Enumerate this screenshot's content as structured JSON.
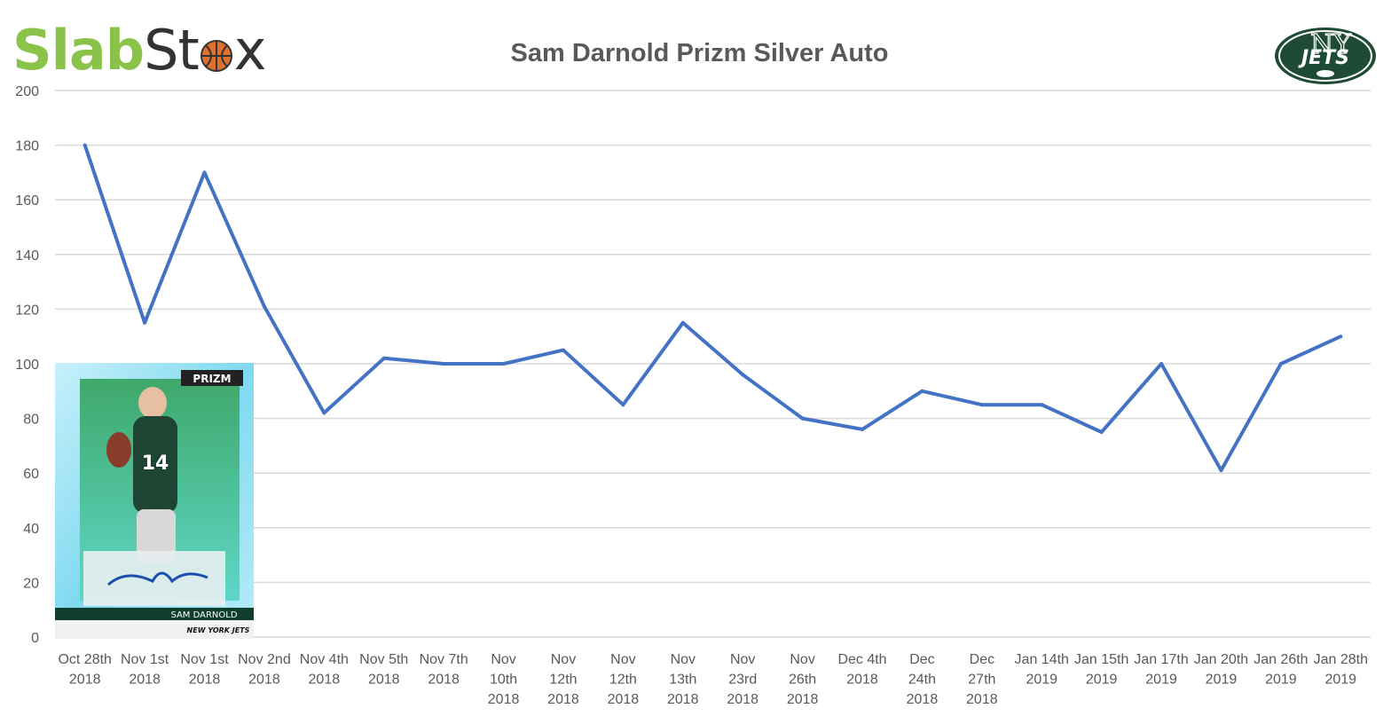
{
  "brand": {
    "logo_part1": "Slab",
    "logo_part2": "St",
    "logo_part3": "x",
    "color_green": "#8bc34a",
    "color_dark": "#333333"
  },
  "team_logo": {
    "text": "JETS",
    "monogram": "NY",
    "color": "#1f4a36"
  },
  "card_image": {
    "player_name": "SAM DARNOLD",
    "team": "NEW YORK JETS",
    "brand": "PRIZM",
    "number": "14"
  },
  "chart_data": {
    "type": "line",
    "title": "Sam Darnold Prizm Silver Auto",
    "xlabel": "",
    "ylabel": "",
    "ylim": [
      0,
      200
    ],
    "yticks": [
      0,
      20,
      40,
      60,
      80,
      100,
      120,
      140,
      160,
      180,
      200
    ],
    "grid": true,
    "line_color": "#4472c4",
    "categories": [
      [
        "Oct 28th",
        "2018"
      ],
      [
        "Nov 1st",
        "2018"
      ],
      [
        "Nov 1st",
        "2018"
      ],
      [
        "Nov 2nd",
        "2018"
      ],
      [
        "Nov 4th",
        "2018"
      ],
      [
        "Nov 5th",
        "2018"
      ],
      [
        "Nov 7th",
        "2018"
      ],
      [
        "Nov",
        "10th",
        "2018"
      ],
      [
        "Nov",
        "12th",
        "2018"
      ],
      [
        "Nov",
        "12th",
        "2018"
      ],
      [
        "Nov",
        "13th",
        "2018"
      ],
      [
        "Nov",
        "23rd",
        "2018"
      ],
      [
        "Nov",
        "26th",
        "2018"
      ],
      [
        "Dec 4th",
        "2018"
      ],
      [
        "Dec",
        "24th",
        "2018"
      ],
      [
        "Dec",
        "27th",
        "2018"
      ],
      [
        "Jan 14th",
        "2019"
      ],
      [
        "Jan 15th",
        "2019"
      ],
      [
        "Jan 17th",
        "2019"
      ],
      [
        "Jan 20th",
        "2019"
      ],
      [
        "Jan 26th",
        "2019"
      ],
      [
        "Jan 28th",
        "2019"
      ]
    ],
    "series": [
      {
        "values": [
          180,
          115,
          170,
          121,
          82,
          102,
          100,
          100,
          105,
          85,
          115,
          96,
          80,
          76,
          90,
          85,
          85,
          75,
          100,
          61,
          100,
          110
        ]
      }
    ]
  }
}
